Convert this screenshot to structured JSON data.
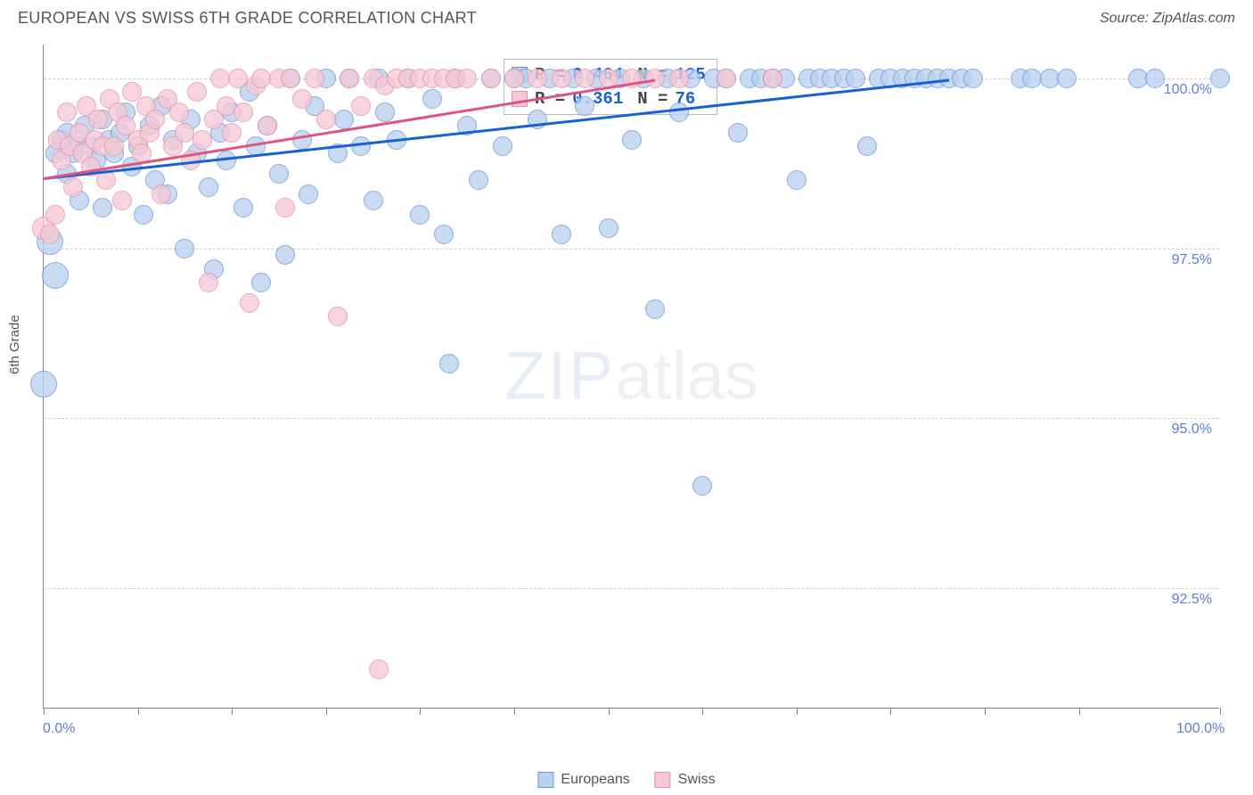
{
  "title": "EUROPEAN VS SWISS 6TH GRADE CORRELATION CHART",
  "source": "Source: ZipAtlas.com",
  "y_axis_label": "6th Grade",
  "watermark": {
    "part1": "ZIP",
    "part2": "atlas"
  },
  "chart": {
    "type": "scatter",
    "xlim": [
      0,
      100
    ],
    "ylim": [
      90.725,
      100.5
    ],
    "x_ticks": [
      0,
      8,
      16,
      24,
      32,
      40,
      48,
      56,
      64,
      72,
      80,
      88,
      100
    ],
    "x_tick_labels": {
      "0": "0.0%",
      "100": "100.0%"
    },
    "y_ticks": [
      92.5,
      95.0,
      97.5,
      100.0
    ],
    "y_tick_labels": [
      "92.5%",
      "95.0%",
      "97.5%",
      "100.0%"
    ],
    "grid_color": "#cfcfcf",
    "axis_color": "#888888",
    "background": "#ffffff",
    "marker_radius": 11,
    "marker_radius_lg": 15,
    "series": [
      {
        "name": "Europeans",
        "fill": "#b9d1f0",
        "stroke": "#6d96d9",
        "points": [
          {
            "x": 0,
            "y": 95.5,
            "r": 15
          },
          {
            "x": 0.5,
            "y": 97.6,
            "r": 15
          },
          {
            "x": 1,
            "y": 97.1,
            "r": 15
          },
          {
            "x": 1,
            "y": 98.9
          },
          {
            "x": 1.5,
            "y": 99.1
          },
          {
            "x": 2,
            "y": 98.6
          },
          {
            "x": 2,
            "y": 99.2
          },
          {
            "x": 2.5,
            "y": 98.9
          },
          {
            "x": 3,
            "y": 99.0
          },
          {
            "x": 3,
            "y": 98.2
          },
          {
            "x": 3.5,
            "y": 99.3
          },
          {
            "x": 4,
            "y": 99.0
          },
          {
            "x": 4.5,
            "y": 98.8
          },
          {
            "x": 5,
            "y": 99.4
          },
          {
            "x": 5,
            "y": 98.1
          },
          {
            "x": 5.5,
            "y": 99.1
          },
          {
            "x": 6,
            "y": 98.9
          },
          {
            "x": 6.5,
            "y": 99.2
          },
          {
            "x": 7,
            "y": 99.5
          },
          {
            "x": 7.5,
            "y": 98.7
          },
          {
            "x": 8,
            "y": 99.0
          },
          {
            "x": 8.5,
            "y": 98.0
          },
          {
            "x": 9,
            "y": 99.3
          },
          {
            "x": 9.5,
            "y": 98.5
          },
          {
            "x": 10,
            "y": 99.6
          },
          {
            "x": 10.5,
            "y": 98.3
          },
          {
            "x": 11,
            "y": 99.1
          },
          {
            "x": 12,
            "y": 97.5
          },
          {
            "x": 12.5,
            "y": 99.4
          },
          {
            "x": 13,
            "y": 98.9
          },
          {
            "x": 14,
            "y": 98.4
          },
          {
            "x": 14.5,
            "y": 97.2
          },
          {
            "x": 15,
            "y": 99.2
          },
          {
            "x": 15.5,
            "y": 98.8
          },
          {
            "x": 16,
            "y": 99.5
          },
          {
            "x": 17,
            "y": 98.1
          },
          {
            "x": 17.5,
            "y": 99.8
          },
          {
            "x": 18,
            "y": 99.0
          },
          {
            "x": 18.5,
            "y": 97.0
          },
          {
            "x": 19,
            "y": 99.3
          },
          {
            "x": 20,
            "y": 98.6
          },
          {
            "x": 20.5,
            "y": 97.4
          },
          {
            "x": 21,
            "y": 100.0
          },
          {
            "x": 22,
            "y": 99.1
          },
          {
            "x": 22.5,
            "y": 98.3
          },
          {
            "x": 23,
            "y": 99.6
          },
          {
            "x": 24,
            "y": 100.0
          },
          {
            "x": 25,
            "y": 98.9
          },
          {
            "x": 25.5,
            "y": 99.4
          },
          {
            "x": 26,
            "y": 100.0
          },
          {
            "x": 27,
            "y": 99.0
          },
          {
            "x": 28,
            "y": 98.2
          },
          {
            "x": 28.5,
            "y": 100.0
          },
          {
            "x": 29,
            "y": 99.5
          },
          {
            "x": 30,
            "y": 99.1
          },
          {
            "x": 31,
            "y": 100.0
          },
          {
            "x": 32,
            "y": 98.0
          },
          {
            "x": 33,
            "y": 99.7
          },
          {
            "x": 34,
            "y": 97.7
          },
          {
            "x": 34.5,
            "y": 95.8
          },
          {
            "x": 35,
            "y": 100.0
          },
          {
            "x": 36,
            "y": 99.3
          },
          {
            "x": 37,
            "y": 98.5
          },
          {
            "x": 38,
            "y": 100.0
          },
          {
            "x": 39,
            "y": 99.0
          },
          {
            "x": 40,
            "y": 100.0
          },
          {
            "x": 41,
            "y": 100.0
          },
          {
            "x": 42,
            "y": 99.4
          },
          {
            "x": 43,
            "y": 100.0
          },
          {
            "x": 44,
            "y": 97.7
          },
          {
            "x": 45,
            "y": 100.0
          },
          {
            "x": 46,
            "y": 99.6
          },
          {
            "x": 47,
            "y": 100.0
          },
          {
            "x": 48,
            "y": 97.8
          },
          {
            "x": 49,
            "y": 100.0
          },
          {
            "x": 50,
            "y": 99.1
          },
          {
            "x": 51,
            "y": 100.0
          },
          {
            "x": 52,
            "y": 96.6
          },
          {
            "x": 53,
            "y": 100.0
          },
          {
            "x": 54,
            "y": 99.5
          },
          {
            "x": 55,
            "y": 100.0
          },
          {
            "x": 56,
            "y": 94.0
          },
          {
            "x": 57,
            "y": 100.0
          },
          {
            "x": 58,
            "y": 100.0
          },
          {
            "x": 59,
            "y": 99.2
          },
          {
            "x": 60,
            "y": 100.0
          },
          {
            "x": 61,
            "y": 100.0
          },
          {
            "x": 62,
            "y": 100.0
          },
          {
            "x": 63,
            "y": 100.0
          },
          {
            "x": 64,
            "y": 98.5
          },
          {
            "x": 65,
            "y": 100.0
          },
          {
            "x": 66,
            "y": 100.0
          },
          {
            "x": 67,
            "y": 100.0
          },
          {
            "x": 68,
            "y": 100.0
          },
          {
            "x": 69,
            "y": 100.0
          },
          {
            "x": 70,
            "y": 99.0
          },
          {
            "x": 71,
            "y": 100.0
          },
          {
            "x": 72,
            "y": 100.0
          },
          {
            "x": 73,
            "y": 100.0
          },
          {
            "x": 74,
            "y": 100.0
          },
          {
            "x": 75,
            "y": 100.0
          },
          {
            "x": 76,
            "y": 100.0
          },
          {
            "x": 77,
            "y": 100.0
          },
          {
            "x": 78,
            "y": 100.0
          },
          {
            "x": 79,
            "y": 100.0
          },
          {
            "x": 83,
            "y": 100.0
          },
          {
            "x": 84,
            "y": 100.0
          },
          {
            "x": 85.5,
            "y": 100.0
          },
          {
            "x": 87,
            "y": 100.0
          },
          {
            "x": 93,
            "y": 100.0
          },
          {
            "x": 94.5,
            "y": 100.0
          },
          {
            "x": 100,
            "y": 100.0
          }
        ],
        "trend": {
          "x1": 0,
          "y1": 98.55,
          "x2": 77,
          "y2": 100.0,
          "color": "#1661d4"
        }
      },
      {
        "name": "Swiss",
        "fill": "#f6c8d5",
        "stroke": "#e591ab",
        "points": [
          {
            "x": 0,
            "y": 97.8,
            "r": 13
          },
          {
            "x": 0.5,
            "y": 97.7
          },
          {
            "x": 1,
            "y": 98.0
          },
          {
            "x": 1.2,
            "y": 99.1
          },
          {
            "x": 1.5,
            "y": 98.8
          },
          {
            "x": 2,
            "y": 99.5
          },
          {
            "x": 2.2,
            "y": 99.0
          },
          {
            "x": 2.5,
            "y": 98.4
          },
          {
            "x": 3,
            "y": 99.2
          },
          {
            "x": 3.3,
            "y": 98.9
          },
          {
            "x": 3.6,
            "y": 99.6
          },
          {
            "x": 4,
            "y": 98.7
          },
          {
            "x": 4.3,
            "y": 99.1
          },
          {
            "x": 4.6,
            "y": 99.4
          },
          {
            "x": 5,
            "y": 99.0
          },
          {
            "x": 5.3,
            "y": 98.5
          },
          {
            "x": 5.6,
            "y": 99.7
          },
          {
            "x": 6,
            "y": 99.0
          },
          {
            "x": 6.3,
            "y": 99.5
          },
          {
            "x": 6.7,
            "y": 98.2
          },
          {
            "x": 7,
            "y": 99.3
          },
          {
            "x": 7.5,
            "y": 99.8
          },
          {
            "x": 8,
            "y": 99.1
          },
          {
            "x": 8.3,
            "y": 98.9
          },
          {
            "x": 8.7,
            "y": 99.6
          },
          {
            "x": 9,
            "y": 99.2
          },
          {
            "x": 9.5,
            "y": 99.4
          },
          {
            "x": 10,
            "y": 98.3
          },
          {
            "x": 10.5,
            "y": 99.7
          },
          {
            "x": 11,
            "y": 99.0
          },
          {
            "x": 11.5,
            "y": 99.5
          },
          {
            "x": 12,
            "y": 99.2
          },
          {
            "x": 12.5,
            "y": 98.8
          },
          {
            "x": 13,
            "y": 99.8
          },
          {
            "x": 13.5,
            "y": 99.1
          },
          {
            "x": 14,
            "y": 97.0
          },
          {
            "x": 14.5,
            "y": 99.4
          },
          {
            "x": 15,
            "y": 100.0
          },
          {
            "x": 15.5,
            "y": 99.6
          },
          {
            "x": 16,
            "y": 99.2
          },
          {
            "x": 16.5,
            "y": 100.0
          },
          {
            "x": 17,
            "y": 99.5
          },
          {
            "x": 17.5,
            "y": 96.7
          },
          {
            "x": 18,
            "y": 99.9
          },
          {
            "x": 18.5,
            "y": 100.0
          },
          {
            "x": 19,
            "y": 99.3
          },
          {
            "x": 20,
            "y": 100.0
          },
          {
            "x": 20.5,
            "y": 98.1
          },
          {
            "x": 21,
            "y": 100.0
          },
          {
            "x": 22,
            "y": 99.7
          },
          {
            "x": 23,
            "y": 100.0
          },
          {
            "x": 24,
            "y": 99.4
          },
          {
            "x": 25,
            "y": 96.5
          },
          {
            "x": 26,
            "y": 100.0
          },
          {
            "x": 27,
            "y": 99.6
          },
          {
            "x": 28,
            "y": 100.0
          },
          {
            "x": 28.5,
            "y": 91.3
          },
          {
            "x": 29,
            "y": 99.9
          },
          {
            "x": 30,
            "y": 100.0
          },
          {
            "x": 31,
            "y": 100.0
          },
          {
            "x": 32,
            "y": 100.0
          },
          {
            "x": 33,
            "y": 100.0
          },
          {
            "x": 34,
            "y": 100.0
          },
          {
            "x": 35,
            "y": 100.0
          },
          {
            "x": 36,
            "y": 100.0
          },
          {
            "x": 38,
            "y": 100.0
          },
          {
            "x": 40,
            "y": 100.0
          },
          {
            "x": 42,
            "y": 100.0
          },
          {
            "x": 44,
            "y": 100.0
          },
          {
            "x": 46,
            "y": 100.0
          },
          {
            "x": 48,
            "y": 100.0
          },
          {
            "x": 50,
            "y": 100.0
          },
          {
            "x": 52,
            "y": 100.0
          },
          {
            "x": 54,
            "y": 100.0
          },
          {
            "x": 58,
            "y": 100.0
          },
          {
            "x": 62,
            "y": 100.0
          }
        ],
        "trend": {
          "x1": 0,
          "y1": 98.55,
          "x2": 52,
          "y2": 100.0,
          "color": "#e05580"
        }
      }
    ]
  },
  "stats": [
    {
      "swatch_fill": "#b9d1f0",
      "swatch_stroke": "#6d96d9",
      "r_label": "R =",
      "r_value": "0.464",
      "n_label": "N =",
      "n_value": "125"
    },
    {
      "swatch_fill": "#f6c8d5",
      "swatch_stroke": "#e591ab",
      "r_label": "R =",
      "r_value": " 0.361",
      "n_label": "N =",
      "n_value": " 76"
    }
  ],
  "legend": [
    {
      "label": "Europeans",
      "fill": "#b9d1f0",
      "stroke": "#6d96d9"
    },
    {
      "label": "Swiss",
      "fill": "#f6c8d5",
      "stroke": "#e591ab"
    }
  ]
}
